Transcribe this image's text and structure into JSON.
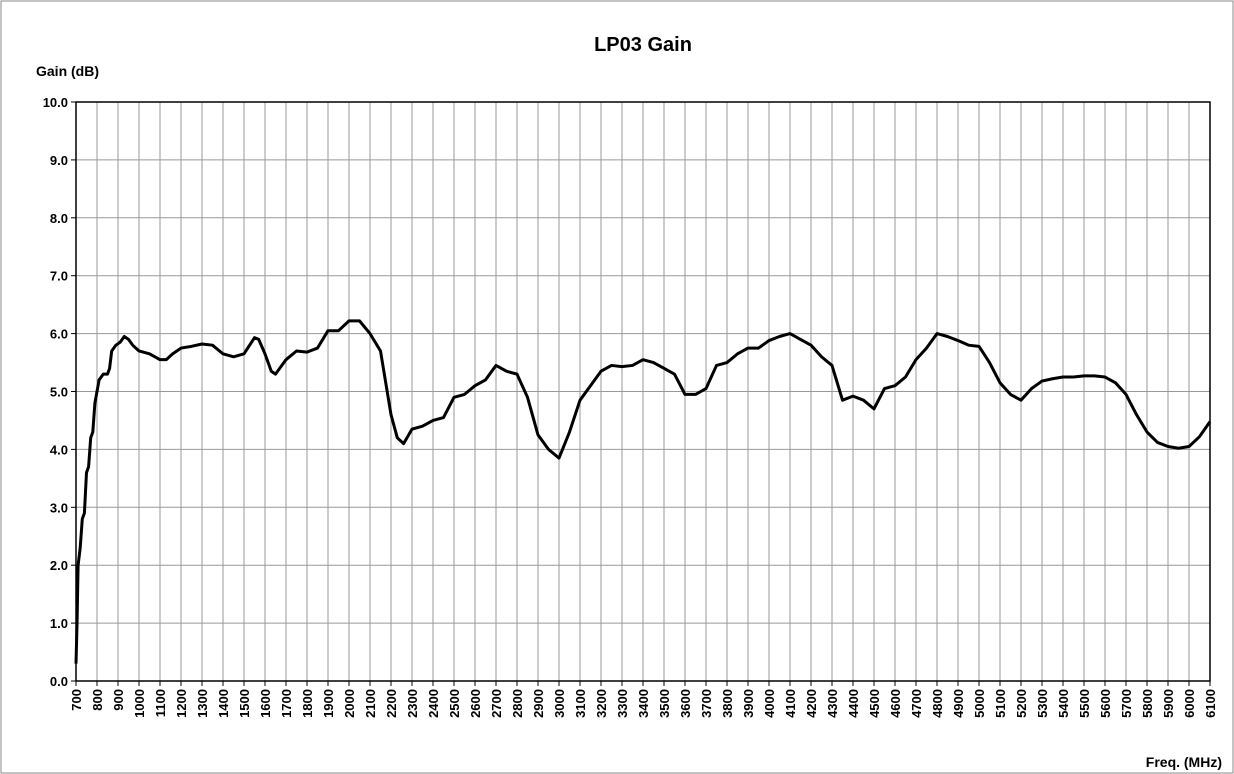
{
  "chart_data": {
    "type": "line",
    "title": "LP03 Gain",
    "y_label": "Gain (dB)",
    "x_label": "Freq. (MHz)",
    "x": [
      700,
      705,
      710,
      720,
      730,
      740,
      750,
      760,
      770,
      780,
      790,
      810,
      830,
      850,
      860,
      870,
      890,
      910,
      930,
      950,
      970,
      1000,
      1050,
      1100,
      1130,
      1160,
      1200,
      1250,
      1300,
      1350,
      1400,
      1450,
      1500,
      1550,
      1570,
      1600,
      1630,
      1650,
      1700,
      1750,
      1800,
      1850,
      1900,
      1950,
      2000,
      2050,
      2100,
      2150,
      2200,
      2230,
      2260,
      2300,
      2350,
      2400,
      2450,
      2500,
      2550,
      2600,
      2650,
      2700,
      2750,
      2800,
      2850,
      2900,
      2950,
      3000,
      3050,
      3100,
      3150,
      3200,
      3250,
      3300,
      3350,
      3400,
      3450,
      3500,
      3550,
      3600,
      3650,
      3700,
      3750,
      3800,
      3850,
      3900,
      3950,
      4000,
      4050,
      4100,
      4150,
      4200,
      4250,
      4300,
      4350,
      4400,
      4450,
      4500,
      4550,
      4600,
      4650,
      4700,
      4750,
      4800,
      4850,
      4900,
      4950,
      5000,
      5050,
      5100,
      5150,
      5200,
      5250,
      5300,
      5350,
      5400,
      5450,
      5500,
      5550,
      5600,
      5650,
      5700,
      5750,
      5800,
      5850,
      5900,
      5950,
      6000,
      6050,
      6100
    ],
    "series": [
      {
        "name": "LP03",
        "color": "#000000",
        "values": [
          0.3,
          1.0,
          2.0,
          2.3,
          2.8,
          2.9,
          3.6,
          3.7,
          4.2,
          4.3,
          4.8,
          5.2,
          5.3,
          5.3,
          5.4,
          5.7,
          5.8,
          5.85,
          5.95,
          5.9,
          5.8,
          5.7,
          5.65,
          5.55,
          5.55,
          5.65,
          5.75,
          5.78,
          5.82,
          5.8,
          5.65,
          5.6,
          5.65,
          5.93,
          5.9,
          5.65,
          5.35,
          5.3,
          5.55,
          5.7,
          5.68,
          5.75,
          6.05,
          6.05,
          6.22,
          6.22,
          6.0,
          5.7,
          4.6,
          4.2,
          4.1,
          4.35,
          4.4,
          4.5,
          4.55,
          4.9,
          4.95,
          5.1,
          5.2,
          5.45,
          5.35,
          5.3,
          4.9,
          4.25,
          4.0,
          3.85,
          4.3,
          4.85,
          5.1,
          5.35,
          5.45,
          5.43,
          5.45,
          5.55,
          5.5,
          5.4,
          5.3,
          4.95,
          4.95,
          5.05,
          5.45,
          5.5,
          5.65,
          5.75,
          5.75,
          5.88,
          5.95,
          6.0,
          5.9,
          5.8,
          5.6,
          5.45,
          4.85,
          4.92,
          4.85,
          4.7,
          5.05,
          5.1,
          5.25,
          5.55,
          5.75,
          6.0,
          5.95,
          5.88,
          5.8,
          5.78,
          5.5,
          5.15,
          4.95,
          4.85,
          5.05,
          5.18,
          5.22,
          5.25,
          5.25,
          5.27,
          5.27,
          5.25,
          5.15,
          4.95,
          4.6,
          4.3,
          4.12,
          4.05,
          4.02,
          4.05,
          4.22,
          4.48
        ]
      }
    ],
    "xlim": [
      700,
      6100
    ],
    "xticks": [
      700,
      800,
      900,
      1000,
      1100,
      1200,
      1300,
      1400,
      1500,
      1600,
      1700,
      1800,
      1900,
      2000,
      2100,
      2200,
      2300,
      2400,
      2500,
      2600,
      2700,
      2800,
      2900,
      3000,
      3100,
      3200,
      3300,
      3400,
      3500,
      3600,
      3700,
      3800,
      3900,
      4000,
      4100,
      4200,
      4300,
      4400,
      4500,
      4600,
      4700,
      4800,
      4900,
      5000,
      5100,
      5200,
      5300,
      5400,
      5500,
      5600,
      5700,
      5800,
      5900,
      6000,
      6100
    ],
    "ylim": [
      0,
      10
    ],
    "yticks": [
      {
        "value": 0,
        "label": "0.0"
      },
      {
        "value": 1,
        "label": "1.0"
      },
      {
        "value": 2,
        "label": "2.0"
      },
      {
        "value": 3,
        "label": "3.0"
      },
      {
        "value": 4,
        "label": "4.0"
      },
      {
        "value": 5,
        "label": "5.0"
      },
      {
        "value": 6,
        "label": "6.0"
      },
      {
        "value": 7,
        "label": "7.0"
      },
      {
        "value": 8,
        "label": "8.0"
      },
      {
        "value": 9,
        "label": "9.0"
      },
      {
        "value": 10,
        "label": "10.0"
      }
    ],
    "grid": true
  }
}
